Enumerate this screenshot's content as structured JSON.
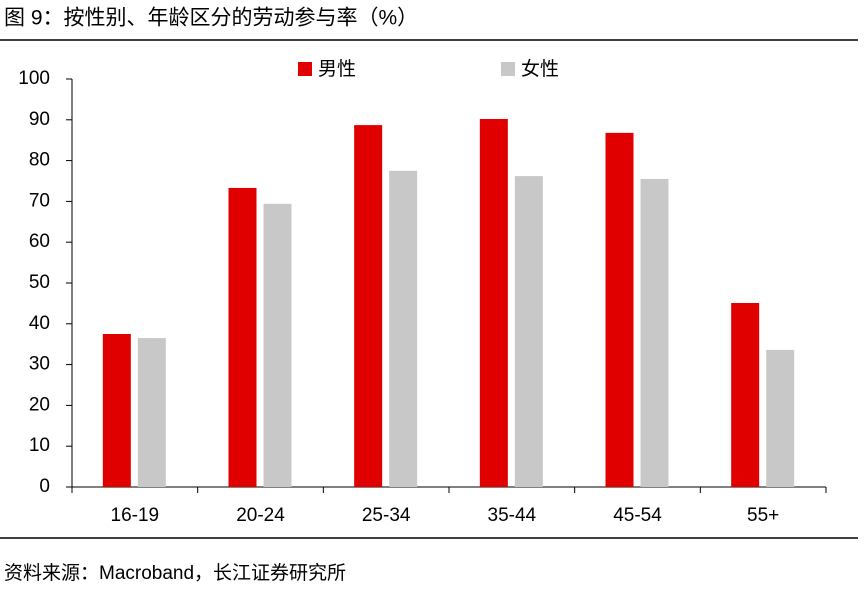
{
  "chart_data": {
    "type": "bar",
    "title": "图 9：按性别、年龄区分的劳动参与率（%）",
    "source": "资料来源：Macroband，长江证券研究所",
    "categories": [
      "16-19",
      "20-24",
      "25-34",
      "35-44",
      "45-54",
      "55+"
    ],
    "series": [
      {
        "name": "男性",
        "color": "#e00000",
        "values": [
          37.5,
          73.3,
          88.7,
          90.2,
          86.8,
          45.1
        ]
      },
      {
        "name": "女性",
        "color": "#c8c8c8",
        "values": [
          36.5,
          69.4,
          77.5,
          76.2,
          75.5,
          33.6
        ]
      }
    ],
    "ylim": [
      0,
      100
    ],
    "yticks": [
      0,
      10,
      20,
      30,
      40,
      50,
      60,
      70,
      80,
      90,
      100
    ],
    "grid": false,
    "legend": "top"
  }
}
